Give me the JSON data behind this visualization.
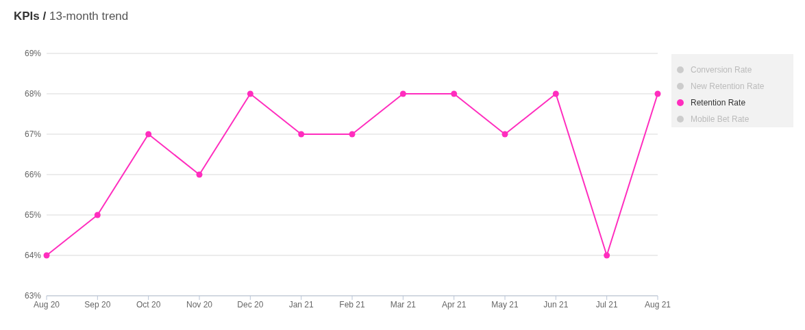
{
  "chart_data": {
    "type": "line",
    "title": "KPIs /",
    "subtitle": "13-month trend",
    "categories": [
      "Aug 20",
      "Sep 20",
      "Oct 20",
      "Nov 20",
      "Dec 20",
      "Jan 21",
      "Feb 21",
      "Mar 21",
      "Apr 21",
      "May 21",
      "Jun 21",
      "Jul 21",
      "Aug 21"
    ],
    "series": [
      {
        "name": "Conversion Rate",
        "color": "#cccccc",
        "values": [
          null,
          null,
          null,
          null,
          null,
          null,
          null,
          null,
          null,
          null,
          null,
          null,
          null
        ]
      },
      {
        "name": "New Retention Rate",
        "color": "#cccccc",
        "values": [
          null,
          null,
          null,
          null,
          null,
          null,
          null,
          null,
          null,
          null,
          null,
          null,
          null
        ]
      },
      {
        "name": "Retention Rate",
        "color": "#ff2dbe",
        "values": [
          64,
          65,
          67,
          66,
          68,
          67,
          67,
          68,
          68,
          67,
          68,
          64,
          68
        ]
      },
      {
        "name": "Mobile Bet Rate",
        "color": "#cccccc",
        "values": [
          null,
          null,
          null,
          null,
          null,
          null,
          null,
          null,
          null,
          null,
          null,
          null,
          null
        ]
      }
    ],
    "ylim": [
      63,
      69
    ],
    "yticks": [
      {
        "value": 63,
        "label": "63%"
      },
      {
        "value": 64,
        "label": "64%"
      },
      {
        "value": 65,
        "label": "65%"
      },
      {
        "value": 66,
        "label": "66%"
      },
      {
        "value": 67,
        "label": "67%"
      },
      {
        "value": 68,
        "label": "68%"
      },
      {
        "value": 69,
        "label": "69%"
      }
    ],
    "grid": "y",
    "legend": "top right",
    "marker": "circle",
    "line_style": "solid"
  }
}
